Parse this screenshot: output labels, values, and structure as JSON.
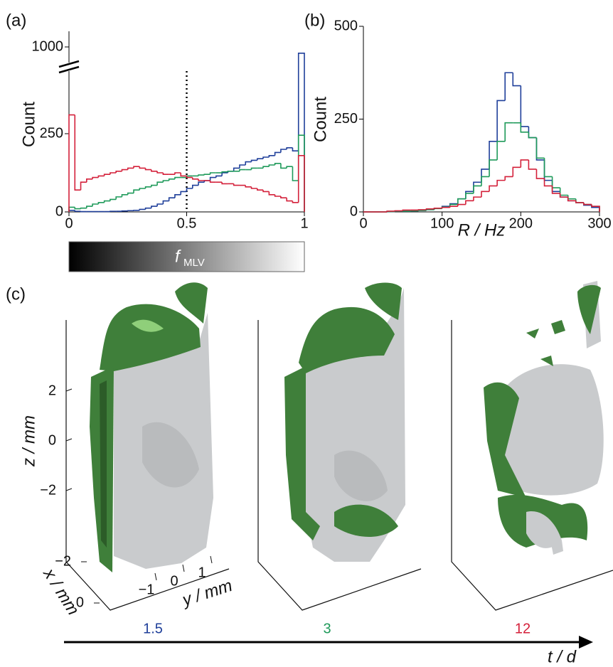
{
  "chart_data": [
    {
      "type": "histogram",
      "panel": "(a)",
      "ylabel": "Count",
      "bins": [
        0,
        0.025,
        0.05,
        0.075,
        0.1,
        0.125,
        0.15,
        0.175,
        0.2,
        0.225,
        0.25,
        0.275,
        0.3,
        0.325,
        0.35,
        0.375,
        0.4,
        0.425,
        0.45,
        0.475,
        0.5,
        0.525,
        0.55,
        0.575,
        0.6,
        0.625,
        0.65,
        0.675,
        0.7,
        0.725,
        0.75,
        0.775,
        0.8,
        0.825,
        0.85,
        0.875,
        0.9,
        0.925,
        0.95,
        0.975,
        1
      ],
      "series": [
        {
          "color": "#1f3f9a",
          "values": [
            5,
            2,
            1,
            1,
            1,
            1,
            1,
            2,
            2,
            3,
            4,
            5,
            8,
            12,
            18,
            25,
            35,
            45,
            55,
            65,
            75,
            85,
            95,
            100,
            110,
            115,
            125,
            130,
            140,
            150,
            160,
            165,
            170,
            175,
            180,
            190,
            200,
            205,
            195,
            980
          ]
        },
        {
          "color": "#1f9a5a",
          "values": [
            15,
            10,
            12,
            18,
            25,
            30,
            35,
            40,
            48,
            55,
            60,
            70,
            75,
            80,
            85,
            95,
            100,
            105,
            110,
            110,
            115,
            115,
            118,
            120,
            125,
            125,
            128,
            130,
            130,
            135,
            135,
            140,
            140,
            145,
            150,
            155,
            140,
            145,
            100,
            245
          ]
        },
        {
          "color": "#d4203a",
          "values": [
            310,
            70,
            95,
            105,
            110,
            115,
            120,
            125,
            130,
            135,
            140,
            145,
            140,
            135,
            130,
            125,
            120,
            120,
            125,
            115,
            110,
            105,
            100,
            100,
            95,
            95,
            90,
            90,
            85,
            85,
            80,
            75,
            70,
            65,
            55,
            50,
            45,
            35,
            30,
            180
          ]
        }
      ],
      "xlim": [
        0,
        1
      ],
      "xticks": [
        0,
        0.5,
        1
      ],
      "ylim": [
        0,
        1050
      ],
      "ybreak": [
        450,
        950
      ],
      "yticks": [
        0,
        250,
        1000
      ],
      "vline": 0.5
    },
    {
      "type": "histogram",
      "panel": "(b)",
      "ylabel": "Count",
      "xlabel": "R / Hz",
      "bins": [
        0,
        10,
        20,
        30,
        40,
        50,
        60,
        70,
        80,
        90,
        100,
        110,
        120,
        130,
        140,
        150,
        160,
        170,
        180,
        190,
        200,
        210,
        220,
        230,
        240,
        250,
        260,
        270,
        280,
        290,
        300
      ],
      "series": [
        {
          "color": "#1f3f9a",
          "values": [
            0,
            0,
            0,
            1,
            2,
            2,
            3,
            4,
            6,
            10,
            15,
            22,
            35,
            55,
            80,
            115,
            190,
            300,
            375,
            340,
            230,
            200,
            140,
            85,
            55,
            40,
            30,
            25,
            18,
            12
          ]
        },
        {
          "color": "#1f9a5a",
          "values": [
            0,
            0,
            0,
            1,
            2,
            2,
            3,
            4,
            6,
            9,
            13,
            20,
            35,
            50,
            70,
            95,
            140,
            190,
            240,
            240,
            215,
            200,
            145,
            95,
            65,
            45,
            35,
            25,
            20,
            15
          ]
        },
        {
          "color": "#d4203a",
          "values": [
            0,
            0,
            0,
            2,
            3,
            5,
            5,
            6,
            8,
            10,
            12,
            15,
            20,
            30,
            40,
            55,
            70,
            85,
            95,
            120,
            140,
            115,
            90,
            70,
            50,
            40,
            30,
            25,
            20,
            15
          ]
        }
      ],
      "xlim": [
        0,
        300
      ],
      "xticks": [
        0,
        100,
        200,
        300
      ],
      "ylim": [
        0,
        500
      ],
      "yticks": [
        0,
        250,
        500
      ]
    }
  ],
  "colorbar": {
    "label": "f",
    "subscript": "MLV"
  },
  "panel_c": {
    "panel": "(c)",
    "zlabel": "z / mm",
    "xlabel": "x / mm",
    "ylabel": "y / mm",
    "zticks": [
      2,
      0,
      {
        "value": -2,
        "label": "−2"
      }
    ],
    "xticks": [
      {
        "value": -2,
        "label": "−2"
      },
      0
    ],
    "yticks": [
      {
        "value": -1,
        "label": "−1"
      },
      0,
      1
    ],
    "timeline": {
      "labels": [
        "1.5",
        "3",
        "12"
      ],
      "axis_label": "t / d"
    }
  }
}
